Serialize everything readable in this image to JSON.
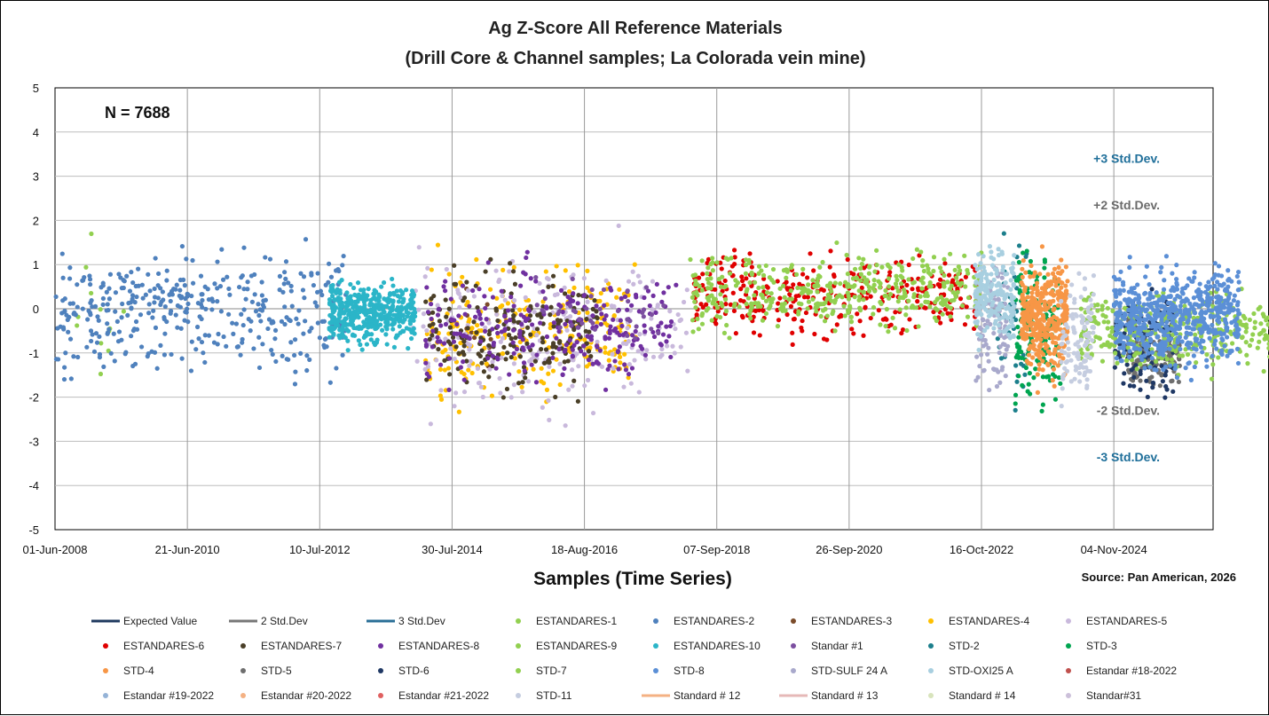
{
  "chart_data": {
    "type": "scatter",
    "title": "Ag Z-Score All Reference Materials",
    "subtitle": "(Drill Core & Channel samples; La Colorada vein mine)",
    "xlabel": "Samples (Time Series)",
    "ylabel": "",
    "source": "Source: Pan American, 2026",
    "n_label": "N = 7688",
    "ylim": [
      -5,
      5
    ],
    "yticks": [
      "5",
      "4",
      "3",
      "2",
      "1",
      "0",
      "-1",
      "-2",
      "-3",
      "-4",
      "-5"
    ],
    "xtick_labels": [
      "01-Jun-2008",
      "21-Jun-2010",
      "10-Jul-2012",
      "30-Jul-2014",
      "18-Aug-2016",
      "07-Sep-2018",
      "26-Sep-2020",
      "16-Oct-2022",
      "04-Nov-2024"
    ],
    "grid": true,
    "legend_position": "bottom",
    "annotations": [
      {
        "text": "+3 Std.Dev.",
        "y": 3.4,
        "color": "#1f6f9a"
      },
      {
        "text": "+2 Std.Dev.",
        "y": 2.35,
        "color": "#6b6b6b"
      },
      {
        "text": "-2 Std.Dev.",
        "y": -2.3,
        "color": "#6b6b6b"
      },
      {
        "text": "-3 Std.Dev.",
        "y": -3.35,
        "color": "#1f6f9a"
      }
    ],
    "series": [
      {
        "name": "Expected Value",
        "kind": "line",
        "color": "#1f3a5f"
      },
      {
        "name": "2 Std.Dev",
        "kind": "line",
        "color": "#777777"
      },
      {
        "name": "3 Std.Dev",
        "kind": "line",
        "color": "#2a6f97"
      },
      {
        "name": "ESTANDARES-1",
        "kind": "marker",
        "color": "#92d050",
        "x_range": [
          0.0,
          0.55
        ],
        "y_mean": -0.1,
        "y_sd": 0.9,
        "count": 12
      },
      {
        "name": "ESTANDARES-2",
        "kind": "marker",
        "color": "#4f81bd",
        "x_range": [
          0.0,
          2.2
        ],
        "y_mean": -0.1,
        "y_sd": 0.9,
        "count": 380
      },
      {
        "name": "ESTANDARES-3",
        "kind": "marker",
        "color": "#7b4b2a",
        "x_range": [
          3.1,
          3.3
        ],
        "y_mean": 0.0,
        "y_sd": 1.0,
        "count": 10
      },
      {
        "name": "ESTANDARES-4",
        "kind": "marker",
        "color": "#ffc000",
        "x_range": [
          2.8,
          4.4
        ],
        "y_mean": -0.5,
        "y_sd": 0.9,
        "count": 240
      },
      {
        "name": "ESTANDARES-5",
        "kind": "marker",
        "color": "#c9b9dc",
        "x_range": [
          2.7,
          4.8
        ],
        "y_mean": -0.6,
        "y_sd": 1.1,
        "count": 230
      },
      {
        "name": "ESTANDARES-6",
        "kind": "marker",
        "color": "#e00000",
        "x_range": [
          4.8,
          7.0
        ],
        "y_mean": 0.3,
        "y_sd": 0.6,
        "count": 320
      },
      {
        "name": "ESTANDARES-7",
        "kind": "marker",
        "color": "#4a3f28",
        "x_range": [
          2.8,
          4.1
        ],
        "y_mean": -0.5,
        "y_sd": 0.9,
        "count": 200
      },
      {
        "name": "ESTANDARES-8",
        "kind": "marker",
        "color": "#7030a0",
        "x_range": [
          2.8,
          4.7
        ],
        "y_mean": -0.4,
        "y_sd": 0.8,
        "count": 260
      },
      {
        "name": "ESTANDARES-9",
        "kind": "marker",
        "color": "#92d050",
        "x_range": [
          4.8,
          7.0
        ],
        "y_mean": 0.4,
        "y_sd": 0.55,
        "count": 420
      },
      {
        "name": "ESTANDARES-10",
        "kind": "marker",
        "color": "#2bb5c8",
        "x_range": [
          2.07,
          2.72
        ],
        "y_mean": -0.1,
        "y_sd": 0.45,
        "count": 420
      },
      {
        "name": "Standar #1",
        "kind": "marker",
        "color": "#7c4fa0",
        "x_range": [
          3.6,
          4.6
        ],
        "y_mean": 0.0,
        "y_sd": 0.5,
        "count": 40
      },
      {
        "name": "STD-2",
        "kind": "marker",
        "color": "#1c7f8c",
        "x_range": [
          7.1,
          7.35
        ],
        "y_mean": -0.2,
        "y_sd": 1.3,
        "count": 40
      },
      {
        "name": "STD-3",
        "kind": "marker",
        "color": "#00a550",
        "x_range": [
          7.25,
          7.6
        ],
        "y_mean": -0.4,
        "y_sd": 1.0,
        "count": 150
      },
      {
        "name": "STD-4",
        "kind": "marker",
        "color": "#f79646",
        "x_range": [
          7.3,
          7.65
        ],
        "y_mean": -0.2,
        "y_sd": 0.8,
        "count": 360
      },
      {
        "name": "STD-5",
        "kind": "marker",
        "color": "#6e6e6e",
        "x_range": [
          8.1,
          8.5
        ],
        "y_mean": -1.0,
        "y_sd": 0.5,
        "count": 160
      },
      {
        "name": "STD-6",
        "kind": "marker",
        "color": "#1f3864",
        "x_range": [
          8.0,
          8.45
        ],
        "y_mean": -0.8,
        "y_sd": 0.8,
        "count": 120
      },
      {
        "name": "STD-7",
        "kind": "marker",
        "color": "#92d050",
        "x_range": [
          7.75,
          9.9
        ],
        "y_mean": -0.5,
        "y_sd": 0.55,
        "count": 480
      },
      {
        "name": "STD-8",
        "kind": "marker",
        "color": "#5b8fd6",
        "x_range": [
          8.0,
          8.95
        ],
        "y_mean": -0.2,
        "y_sd": 0.7,
        "count": 620
      },
      {
        "name": "STD-SULF 24 A",
        "kind": "marker",
        "color": "#a9a9cc",
        "x_range": [
          6.95,
          7.2
        ],
        "y_mean": -0.3,
        "y_sd": 0.9,
        "count": 100
      },
      {
        "name": "STD-OXI25 A",
        "kind": "marker",
        "color": "#a8cfe0",
        "x_range": [
          6.95,
          7.25
        ],
        "y_mean": 0.3,
        "y_sd": 0.7,
        "count": 200
      },
      {
        "name": "Estandar #18-2022",
        "kind": "marker",
        "color": "#c0504d",
        "x_range": [
          10.1,
          10.25
        ],
        "y_mean": -0.5,
        "y_sd": 0.9,
        "count": 140
      },
      {
        "name": "Estandar #19-2022",
        "kind": "marker",
        "color": "#95b3d7",
        "x_range": [
          10.0,
          10.25
        ],
        "y_mean": -1.0,
        "y_sd": 0.9,
        "count": 200
      },
      {
        "name": "Estandar #20-2022",
        "kind": "marker",
        "color": "#f4b183",
        "x_range": [],
        "y_mean": 0,
        "y_sd": 0,
        "count": 0
      },
      {
        "name": "Estandar #21-2022",
        "kind": "marker",
        "color": "#e06060",
        "x_range": [],
        "y_mean": 0,
        "y_sd": 0,
        "count": 0
      },
      {
        "name": "STD-11",
        "kind": "marker",
        "color": "#c5cde0",
        "x_range": [
          7.6,
          7.85
        ],
        "y_mean": -0.6,
        "y_sd": 0.8,
        "count": 110
      },
      {
        "name": "Standard # 12",
        "kind": "line",
        "color": "#f4b183"
      },
      {
        "name": "Standard # 13",
        "kind": "line",
        "color": "#e6b8b7"
      },
      {
        "name": "Standard # 14",
        "kind": "marker",
        "color": "#d8e4bc",
        "x_range": [
          10.6,
          11.2
        ],
        "y_mean": -0.4,
        "y_sd": 0.45,
        "count": 380
      },
      {
        "name": "Standar#31",
        "kind": "marker",
        "color": "#ccc0da",
        "x_range": [
          11.3,
          11.5
        ],
        "y_mean": 0.6,
        "y_sd": 0.9,
        "count": 220
      }
    ]
  }
}
